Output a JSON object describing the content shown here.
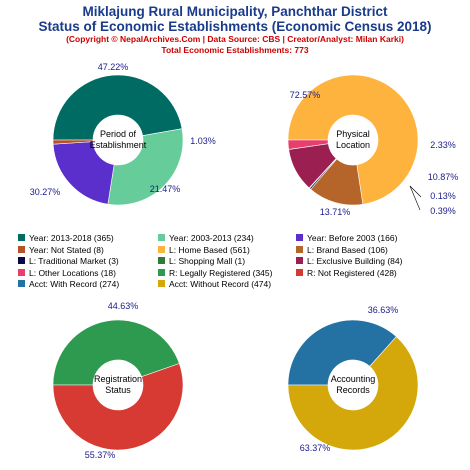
{
  "header": {
    "title_line1": "Miklajung Rural Municipality, Panchthar District",
    "title_line2": "Status of Economic Establishments (Economic Census 2018)",
    "copyright": "(Copyright © NepalArchives.Com | Data Source: CBS | Creator/Analyst: Milan Karki)",
    "total": "Total Economic Establishments: 773"
  },
  "chart_data": [
    {
      "type": "pie",
      "center_label": [
        "Period of",
        "Establishment"
      ],
      "slices": [
        {
          "label": "Year: 2013-2018",
          "value": 365,
          "percent": "47.22%",
          "color": "#006b63"
        },
        {
          "label": "Year: 2003-2013",
          "value": 234,
          "percent": "30.27%",
          "color": "#66cc99"
        },
        {
          "label": "Year: Before 2003",
          "value": 166,
          "percent": "21.47%",
          "color": "#5b2fcc"
        },
        {
          "label": "Year: Not Stated",
          "value": 8,
          "percent": "1.03%",
          "color": "#b5522a"
        }
      ]
    },
    {
      "type": "pie",
      "center_label": [
        "Physical",
        "Location"
      ],
      "slices": [
        {
          "label": "L: Home Based",
          "value": 561,
          "percent": "72.57%",
          "color": "#ffb33f"
        },
        {
          "label": "L: Brand Based",
          "value": 106,
          "percent": "13.71%",
          "color": "#b5642a"
        },
        {
          "label": "L: Traditional Market",
          "value": 3,
          "percent": "0.39%",
          "color": "#0a0a4a"
        },
        {
          "label": "L: Shopping Mall",
          "value": 1,
          "percent": "0.13%",
          "color": "#2e7d32"
        },
        {
          "label": "L: Exclusive Building",
          "value": 84,
          "percent": "10.87%",
          "color": "#9c1f52"
        },
        {
          "label": "L: Other Locations",
          "value": 18,
          "percent": "2.33%",
          "color": "#e83e6c"
        }
      ]
    },
    {
      "type": "pie",
      "center_label": [
        "Registration",
        "Status"
      ],
      "slices": [
        {
          "label": "R: Legally Registered",
          "value": 345,
          "percent": "44.63%",
          "color": "#2e9a4f"
        },
        {
          "label": "R: Not Registered",
          "value": 428,
          "percent": "55.37%",
          "color": "#d63a32"
        }
      ]
    },
    {
      "type": "pie",
      "center_label": [
        "Accounting",
        "Records"
      ],
      "slices": [
        {
          "label": "Acct: With Record",
          "value": 274,
          "percent": "36.63%",
          "color": "#2471a3"
        },
        {
          "label": "Acct: Without Record",
          "value": 474,
          "percent": "63.37%",
          "color": "#d4a80a"
        }
      ]
    }
  ],
  "legend": [
    {
      "text": "Year: 2013-2018 (365)",
      "color": "#006b63"
    },
    {
      "text": "Year: 2003-2013 (234)",
      "color": "#66cc99"
    },
    {
      "text": "Year: Before 2003 (166)",
      "color": "#5b2fcc"
    },
    {
      "text": "Year: Not Stated (8)",
      "color": "#b5522a"
    },
    {
      "text": "L: Home Based (561)",
      "color": "#ffb33f"
    },
    {
      "text": "L: Brand Based (106)",
      "color": "#b5642a"
    },
    {
      "text": "L: Traditional Market (3)",
      "color": "#0a0a4a"
    },
    {
      "text": "L: Shopping Mall (1)",
      "color": "#2e7d32"
    },
    {
      "text": "L: Exclusive Building (84)",
      "color": "#9c1f52"
    },
    {
      "text": "L: Other Locations (18)",
      "color": "#e83e6c"
    },
    {
      "text": "R: Legally Registered (345)",
      "color": "#2e9a4f"
    },
    {
      "text": "R: Not Registered (428)",
      "color": "#d63a32"
    },
    {
      "text": "Acct: With Record (274)",
      "color": "#2471a3"
    },
    {
      "text": "Acct: Without Record (474)",
      "color": "#d4a80a"
    }
  ]
}
